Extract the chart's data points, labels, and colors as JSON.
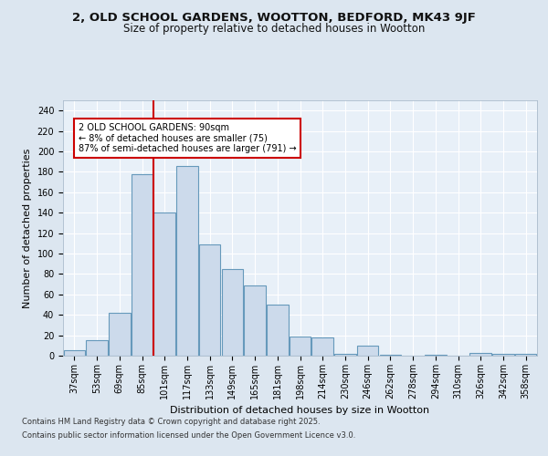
{
  "title_line1": "2, OLD SCHOOL GARDENS, WOOTTON, BEDFORD, MK43 9JF",
  "title_line2": "Size of property relative to detached houses in Wootton",
  "xlabel": "Distribution of detached houses by size in Wootton",
  "ylabel": "Number of detached properties",
  "footer_line1": "Contains HM Land Registry data © Crown copyright and database right 2025.",
  "footer_line2": "Contains public sector information licensed under the Open Government Licence v3.0.",
  "categories": [
    "37sqm",
    "53sqm",
    "69sqm",
    "85sqm",
    "101sqm",
    "117sqm",
    "133sqm",
    "149sqm",
    "165sqm",
    "181sqm",
    "198sqm",
    "214sqm",
    "230sqm",
    "246sqm",
    "262sqm",
    "278sqm",
    "294sqm",
    "310sqm",
    "326sqm",
    "342sqm",
    "358sqm"
  ],
  "values": [
    5,
    15,
    42,
    178,
    140,
    186,
    109,
    85,
    69,
    50,
    19,
    18,
    2,
    10,
    1,
    0,
    1,
    0,
    3,
    2,
    2
  ],
  "bar_color": "#ccdaeb",
  "bar_edge_color": "#6699bb",
  "vline_x_index": 4,
  "vline_color": "#cc0000",
  "annotation_text": "2 OLD SCHOOL GARDENS: 90sqm\n← 8% of detached houses are smaller (75)\n87% of semi-detached houses are larger (791) →",
  "annotation_box_facecolor": "#ffffff",
  "annotation_box_edgecolor": "#cc0000",
  "ylim": [
    0,
    250
  ],
  "yticks": [
    0,
    20,
    40,
    60,
    80,
    100,
    120,
    140,
    160,
    180,
    200,
    220,
    240
  ],
  "bg_color": "#dce6f0",
  "plot_bg_color": "#e8f0f8",
  "grid_color": "#ffffff",
  "title_fontsize": 9.5,
  "subtitle_fontsize": 8.5,
  "axis_label_fontsize": 8,
  "tick_fontsize": 7,
  "annotation_fontsize": 7,
  "footer_fontsize": 6
}
